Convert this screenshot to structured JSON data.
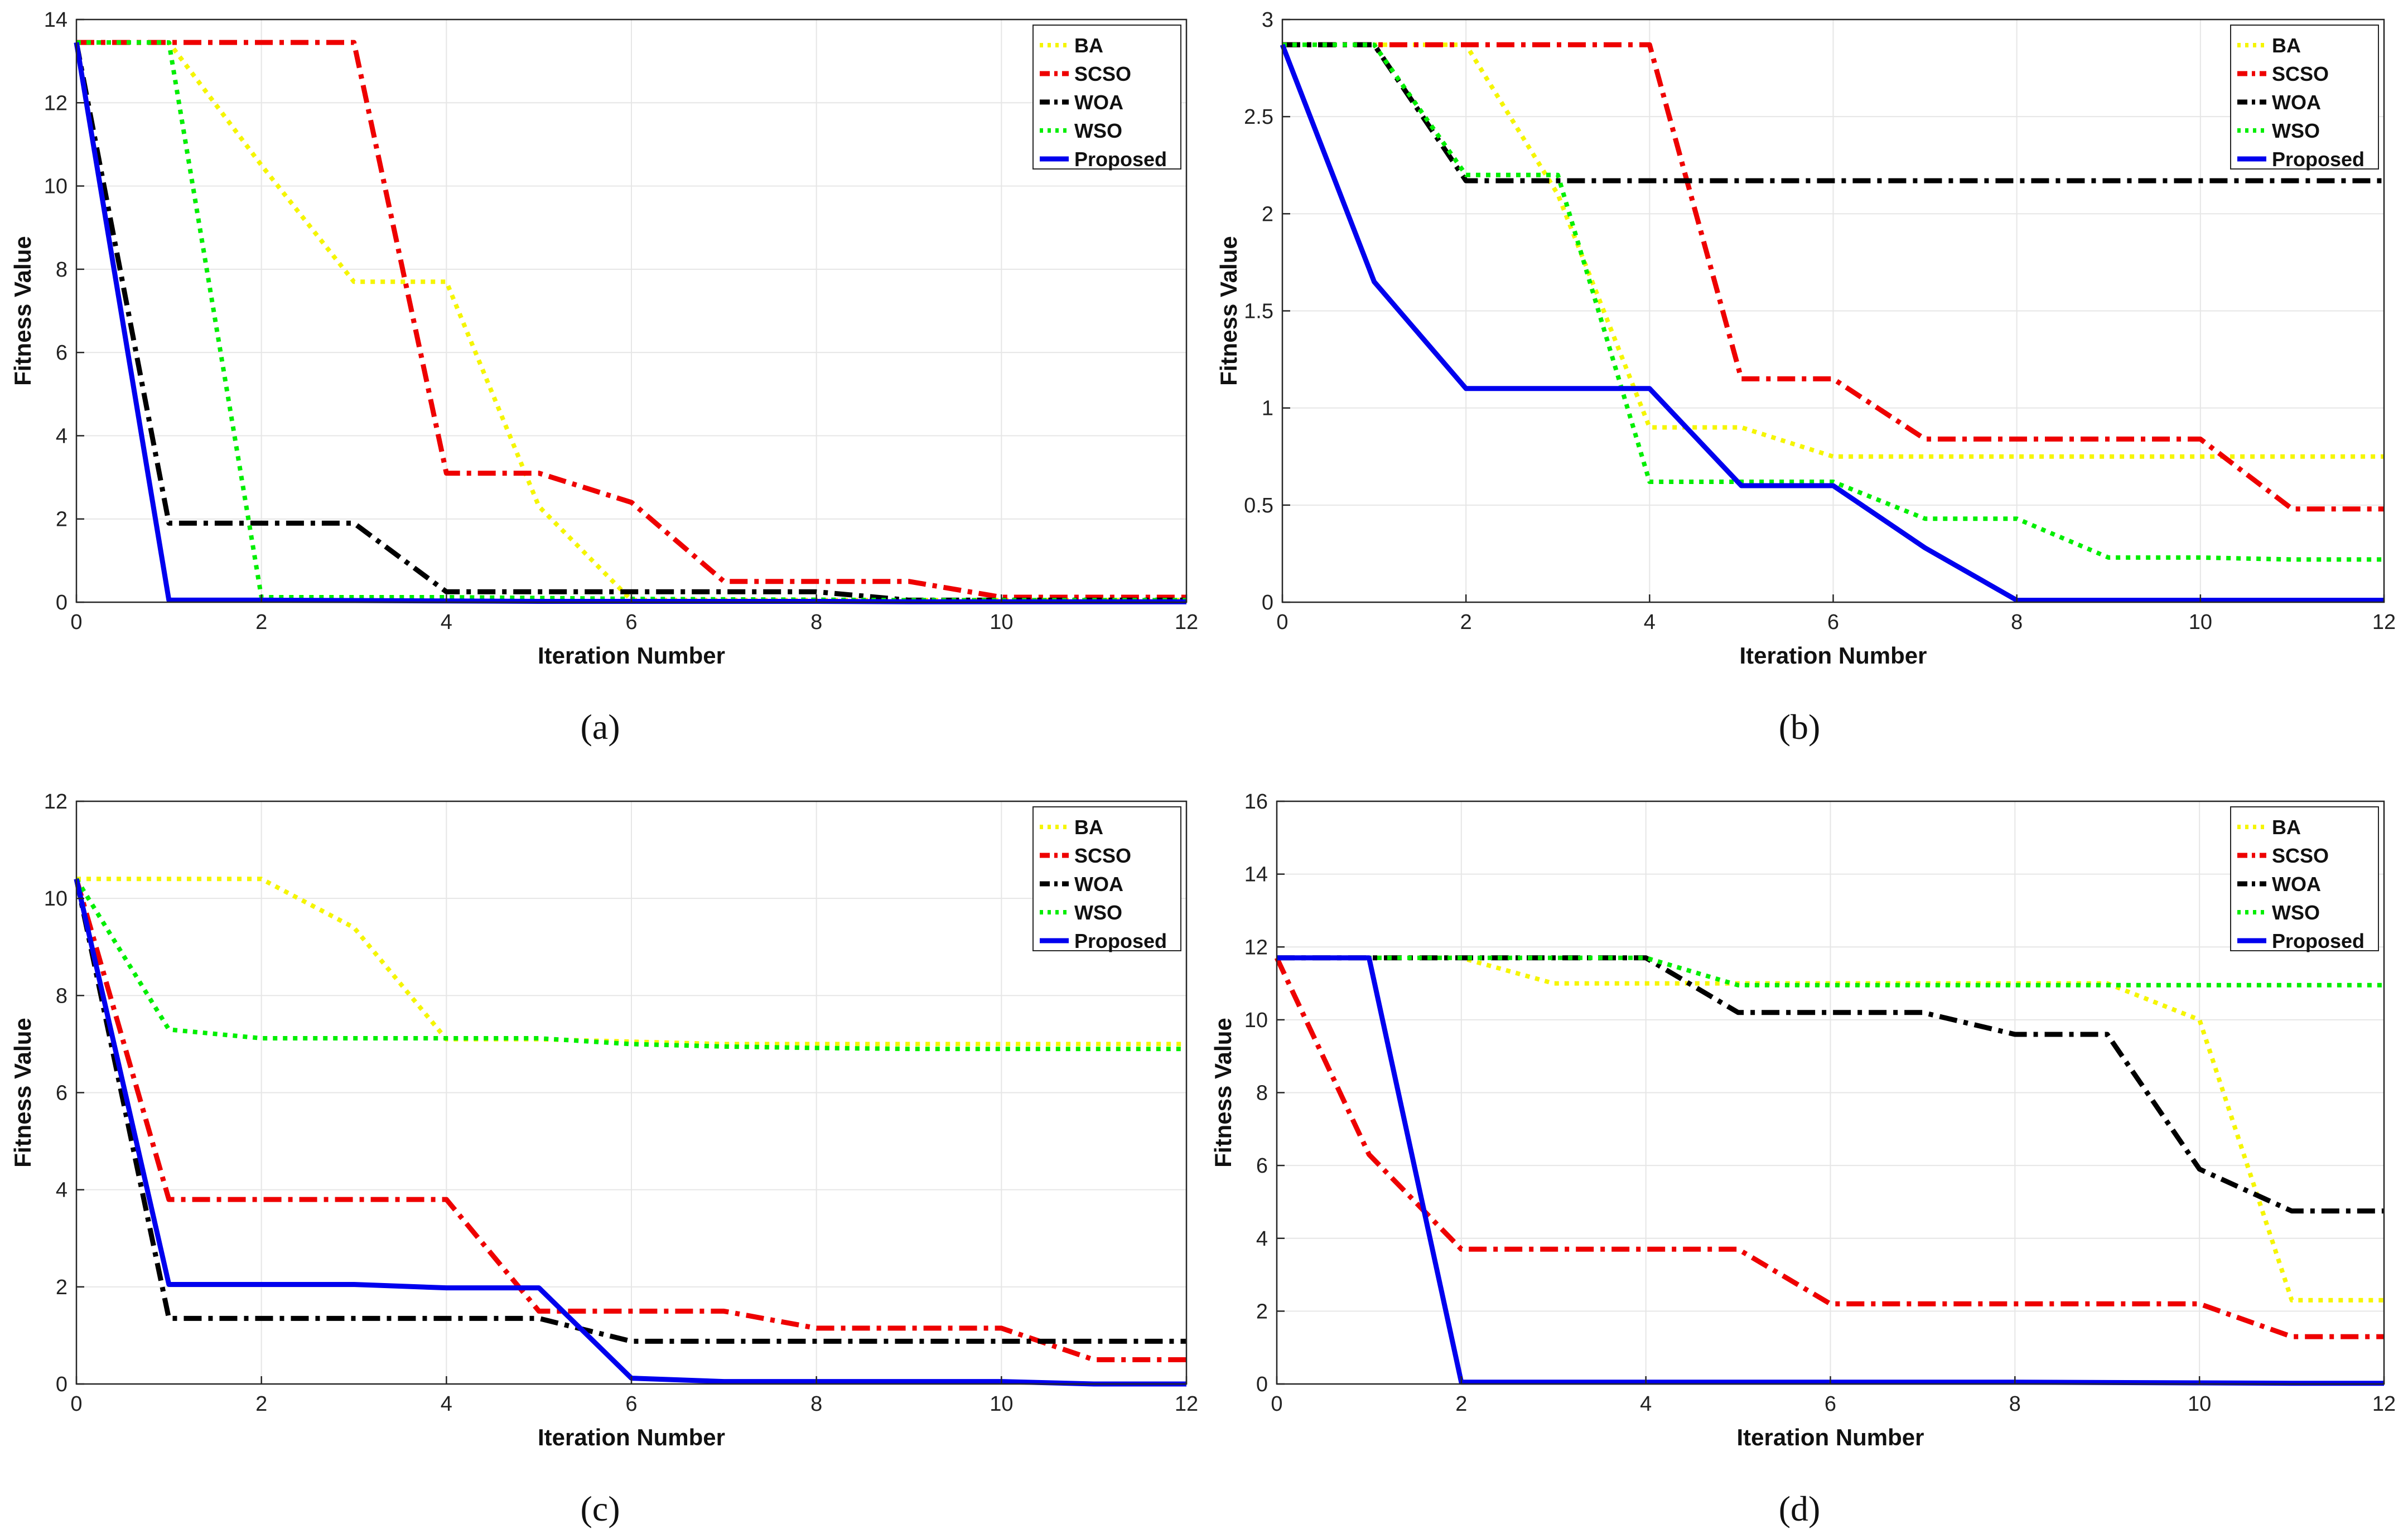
{
  "figure": {
    "panel_labels": [
      "(a)",
      "(b)",
      "(c)",
      "(d)"
    ],
    "series_colors": {
      "BA": "#f5f500",
      "SCSO": "#ee0000",
      "WOA": "#000000",
      "WSO": "#00ee00",
      "Proposed": "#0000ee"
    }
  },
  "chart_data": [
    {
      "type": "line",
      "panel": "(a)",
      "xlabel": "Iteration Number",
      "ylabel": "Fitness Value",
      "xlim": [
        0,
        12
      ],
      "ylim": [
        0,
        14
      ],
      "xticks": [
        0,
        2,
        4,
        6,
        8,
        10,
        12
      ],
      "yticks": [
        0,
        2,
        4,
        6,
        8,
        10,
        12,
        14
      ],
      "grid": true,
      "legend_position": "top-right",
      "x": [
        0,
        1,
        2,
        3,
        4,
        5,
        6,
        7,
        8,
        9,
        10,
        11,
        12
      ],
      "series": [
        {
          "name": "BA",
          "values": [
            13.45,
            13.45,
            10.5,
            7.7,
            7.7,
            2.3,
            0.05,
            0.05,
            0.05,
            0.05,
            0.05,
            0.05,
            0.05
          ]
        },
        {
          "name": "SCSO",
          "values": [
            13.45,
            13.45,
            13.45,
            13.45,
            3.1,
            3.1,
            2.4,
            0.5,
            0.5,
            0.5,
            0.12,
            0.12,
            0.12
          ]
        },
        {
          "name": "WOA",
          "values": [
            13.45,
            1.9,
            1.9,
            1.9,
            0.25,
            0.25,
            0.25,
            0.25,
            0.25,
            0.05,
            0.05,
            0.05,
            0.05
          ]
        },
        {
          "name": "WSO",
          "values": [
            13.45,
            13.45,
            0.12,
            0.12,
            0.12,
            0.1,
            0.08,
            0.07,
            0.06,
            0.05,
            0.05,
            0.05,
            0.05
          ]
        },
        {
          "name": "Proposed",
          "values": [
            13.45,
            0.05,
            0.05,
            0.04,
            0.03,
            0.02,
            0.02,
            0.02,
            0.02,
            0.01,
            0.01,
            0.01,
            0.01
          ]
        }
      ]
    },
    {
      "type": "line",
      "panel": "(b)",
      "xlabel": "Iteration Number",
      "ylabel": "Fitness Value",
      "xlim": [
        0,
        12
      ],
      "ylim": [
        0,
        3
      ],
      "xticks": [
        0,
        2,
        4,
        6,
        8,
        10,
        12
      ],
      "yticks": [
        0,
        0.5,
        1,
        1.5,
        2,
        2.5,
        3
      ],
      "grid": true,
      "legend_position": "top-right",
      "x": [
        0,
        1,
        2,
        3,
        4,
        5,
        6,
        7,
        8,
        9,
        10,
        11,
        12
      ],
      "series": [
        {
          "name": "BA",
          "values": [
            2.87,
            2.87,
            2.87,
            2.1,
            0.9,
            0.9,
            0.75,
            0.75,
            0.75,
            0.75,
            0.75,
            0.75,
            0.75
          ]
        },
        {
          "name": "SCSO",
          "values": [
            2.87,
            2.87,
            2.87,
            2.87,
            2.87,
            1.15,
            1.15,
            0.84,
            0.84,
            0.84,
            0.84,
            0.48,
            0.48
          ]
        },
        {
          "name": "WOA",
          "values": [
            2.87,
            2.87,
            2.17,
            2.17,
            2.17,
            2.17,
            2.17,
            2.17,
            2.17,
            2.17,
            2.17,
            2.17,
            2.17
          ]
        },
        {
          "name": "WSO",
          "values": [
            2.87,
            2.87,
            2.2,
            2.2,
            0.62,
            0.62,
            0.62,
            0.43,
            0.43,
            0.23,
            0.23,
            0.22,
            0.22
          ]
        },
        {
          "name": "Proposed",
          "values": [
            2.87,
            1.65,
            1.1,
            1.1,
            1.1,
            0.6,
            0.6,
            0.28,
            0.01,
            0.01,
            0.01,
            0.01,
            0.01
          ]
        }
      ]
    },
    {
      "type": "line",
      "panel": "(c)",
      "xlabel": "Iteration Number",
      "ylabel": "Fitness Value",
      "xlim": [
        0,
        12
      ],
      "ylim": [
        0,
        12
      ],
      "xticks": [
        0,
        2,
        4,
        6,
        8,
        10,
        12
      ],
      "yticks": [
        0,
        2,
        4,
        6,
        8,
        10,
        12
      ],
      "grid": true,
      "legend_position": "top-right",
      "x": [
        0,
        1,
        2,
        3,
        4,
        5,
        6,
        7,
        8,
        9,
        10,
        11,
        12
      ],
      "series": [
        {
          "name": "BA",
          "values": [
            10.4,
            10.4,
            10.4,
            9.4,
            7.1,
            7.1,
            7.05,
            7.0,
            7.0,
            7.0,
            7.0,
            7.0,
            7.0
          ]
        },
        {
          "name": "SCSO",
          "values": [
            10.4,
            3.8,
            3.8,
            3.8,
            3.8,
            1.5,
            1.5,
            1.5,
            1.15,
            1.15,
            1.15,
            0.5,
            0.5
          ]
        },
        {
          "name": "WOA",
          "values": [
            10.4,
            1.35,
            1.35,
            1.35,
            1.35,
            1.35,
            0.88,
            0.88,
            0.88,
            0.88,
            0.88,
            0.88,
            0.88
          ]
        },
        {
          "name": "WSO",
          "values": [
            10.4,
            7.3,
            7.12,
            7.12,
            7.12,
            7.12,
            7.0,
            6.95,
            6.92,
            6.9,
            6.9,
            6.9,
            6.9
          ]
        },
        {
          "name": "Proposed",
          "values": [
            10.4,
            2.05,
            2.05,
            2.05,
            1.98,
            1.98,
            0.12,
            0.05,
            0.05,
            0.05,
            0.05,
            0.0,
            0.0
          ]
        }
      ]
    },
    {
      "type": "line",
      "panel": "(d)",
      "xlabel": "Iteration Number",
      "ylabel": "Fitness Value",
      "xlim": [
        0,
        12
      ],
      "ylim": [
        0,
        16
      ],
      "xticks": [
        0,
        2,
        4,
        6,
        8,
        10,
        12
      ],
      "yticks": [
        0,
        2,
        4,
        6,
        8,
        10,
        12,
        14,
        16
      ],
      "grid": true,
      "legend_position": "top-right",
      "x": [
        0,
        1,
        2,
        3,
        4,
        5,
        6,
        7,
        8,
        9,
        10,
        11,
        12
      ],
      "series": [
        {
          "name": "BA",
          "values": [
            11.7,
            11.7,
            11.7,
            11.0,
            11.0,
            11.0,
            11.0,
            11.0,
            11.0,
            11.0,
            10.0,
            2.3,
            2.3
          ]
        },
        {
          "name": "SCSO",
          "values": [
            11.7,
            6.3,
            3.7,
            3.7,
            3.7,
            3.7,
            2.2,
            2.2,
            2.2,
            2.2,
            2.2,
            1.3,
            1.3
          ]
        },
        {
          "name": "WOA",
          "values": [
            11.7,
            11.7,
            11.7,
            11.7,
            11.7,
            10.2,
            10.2,
            10.2,
            9.6,
            9.6,
            5.9,
            4.75,
            4.75
          ]
        },
        {
          "name": "WSO",
          "values": [
            11.7,
            11.7,
            11.7,
            11.7,
            11.7,
            10.95,
            10.95,
            10.95,
            10.95,
            10.95,
            10.95,
            10.95,
            10.95
          ]
        },
        {
          "name": "Proposed",
          "values": [
            11.7,
            11.7,
            0.05,
            0.05,
            0.05,
            0.05,
            0.05,
            0.05,
            0.05,
            0.04,
            0.03,
            0.02,
            0.02
          ]
        }
      ]
    }
  ]
}
